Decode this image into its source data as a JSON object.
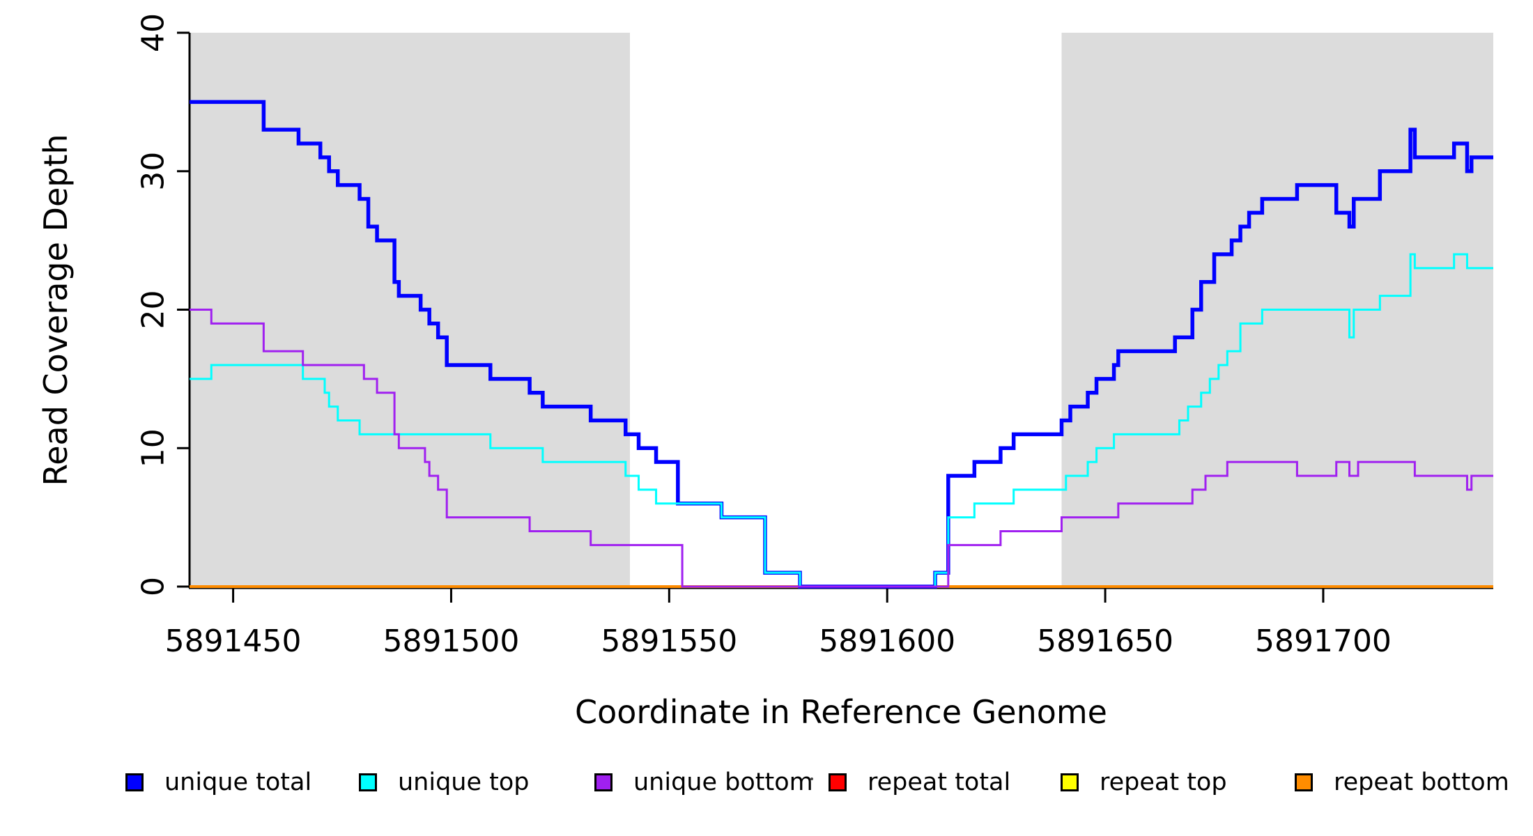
{
  "chart_data": {
    "type": "line",
    "line_style": "step",
    "title": "",
    "xlabel": "Coordinate in Reference Genome",
    "ylabel": "Read Coverage Depth",
    "xlim": [
      5891440,
      5891739
    ],
    "ylim": [
      0,
      40
    ],
    "grid": false,
    "legend_position": "bottom",
    "plot_background": "#FFFFFF",
    "shade_color": "#DCDCDC",
    "shaded_regions": [
      [
        5891440,
        5891541
      ],
      [
        5891640,
        5891739
      ]
    ],
    "x_axis": {
      "ticks": [
        {
          "value": 5891450,
          "label": "5891450"
        },
        {
          "value": 5891500,
          "label": "5891500"
        },
        {
          "value": 5891550,
          "label": "5891550"
        },
        {
          "value": 5891600,
          "label": "5891600"
        },
        {
          "value": 5891650,
          "label": "5891650"
        },
        {
          "value": 5891700,
          "label": "5891700"
        }
      ]
    },
    "y_axis": {
      "ticks": [
        {
          "value": 0,
          "label": "0"
        },
        {
          "value": 10,
          "label": "10"
        },
        {
          "value": 20,
          "label": "20"
        },
        {
          "value": 30,
          "label": "30"
        },
        {
          "value": 40,
          "label": "40"
        }
      ]
    },
    "series": [
      {
        "name": "unique total",
        "color": "#0000FF",
        "points": [
          [
            5891440,
            35
          ],
          [
            5891457,
            33
          ],
          [
            5891465,
            32
          ],
          [
            5891470,
            31
          ],
          [
            5891472,
            30
          ],
          [
            5891474,
            29
          ],
          [
            5891479,
            28
          ],
          [
            5891481,
            26
          ],
          [
            5891483,
            25
          ],
          [
            5891487,
            22
          ],
          [
            5891488,
            21
          ],
          [
            5891493,
            20
          ],
          [
            5891495,
            19
          ],
          [
            5891497,
            18
          ],
          [
            5891499,
            16
          ],
          [
            5891509,
            15
          ],
          [
            5891518,
            14
          ],
          [
            5891521,
            13
          ],
          [
            5891532,
            12
          ],
          [
            5891540,
            11
          ],
          [
            5891543,
            10
          ],
          [
            5891547,
            9
          ],
          [
            5891552,
            6
          ],
          [
            5891562,
            5
          ],
          [
            5891572,
            1
          ],
          [
            5891580,
            0
          ],
          [
            5891611,
            1
          ],
          [
            5891614,
            8
          ],
          [
            5891620,
            9
          ],
          [
            5891626,
            10
          ],
          [
            5891629,
            11
          ],
          [
            5891640,
            12
          ],
          [
            5891642,
            13
          ],
          [
            5891646,
            14
          ],
          [
            5891648,
            15
          ],
          [
            5891652,
            16
          ],
          [
            5891653,
            17
          ],
          [
            5891666,
            18
          ],
          [
            5891670,
            20
          ],
          [
            5891672,
            22
          ],
          [
            5891675,
            24
          ],
          [
            5891679,
            25
          ],
          [
            5891681,
            26
          ],
          [
            5891683,
            27
          ],
          [
            5891686,
            28
          ],
          [
            5891694,
            29
          ],
          [
            5891703,
            27
          ],
          [
            5891706,
            26
          ],
          [
            5891707,
            28
          ],
          [
            5891713,
            30
          ],
          [
            5891720,
            33
          ],
          [
            5891721,
            31
          ],
          [
            5891730,
            32
          ],
          [
            5891733,
            30
          ],
          [
            5891734,
            31
          ]
        ]
      },
      {
        "name": "unique top",
        "color": "#00FFFF",
        "points": [
          [
            5891440,
            15
          ],
          [
            5891445,
            16
          ],
          [
            5891466,
            15
          ],
          [
            5891471,
            14
          ],
          [
            5891472,
            13
          ],
          [
            5891474,
            12
          ],
          [
            5891479,
            11
          ],
          [
            5891509,
            10
          ],
          [
            5891521,
            9
          ],
          [
            5891540,
            8
          ],
          [
            5891543,
            7
          ],
          [
            5891547,
            6
          ],
          [
            5891562,
            5
          ],
          [
            5891572,
            1
          ],
          [
            5891580,
            0
          ],
          [
            5891611,
            1
          ],
          [
            5891614,
            5
          ],
          [
            5891620,
            6
          ],
          [
            5891629,
            7
          ],
          [
            5891641,
            8
          ],
          [
            5891646,
            9
          ],
          [
            5891648,
            10
          ],
          [
            5891652,
            11
          ],
          [
            5891667,
            12
          ],
          [
            5891669,
            13
          ],
          [
            5891672,
            14
          ],
          [
            5891674,
            15
          ],
          [
            5891676,
            16
          ],
          [
            5891678,
            17
          ],
          [
            5891681,
            19
          ],
          [
            5891686,
            20
          ],
          [
            5891706,
            18
          ],
          [
            5891707,
            20
          ],
          [
            5891713,
            21
          ],
          [
            5891720,
            24
          ],
          [
            5891721,
            23
          ],
          [
            5891730,
            24
          ],
          [
            5891733,
            23
          ]
        ]
      },
      {
        "name": "unique bottom",
        "color": "#A020F0",
        "points": [
          [
            5891440,
            20
          ],
          [
            5891445,
            19
          ],
          [
            5891457,
            17
          ],
          [
            5891466,
            16
          ],
          [
            5891480,
            15
          ],
          [
            5891483,
            14
          ],
          [
            5891487,
            11
          ],
          [
            5891488,
            10
          ],
          [
            5891494,
            9
          ],
          [
            5891495,
            8
          ],
          [
            5891497,
            7
          ],
          [
            5891499,
            5
          ],
          [
            5891518,
            4
          ],
          [
            5891532,
            3
          ],
          [
            5891553,
            0
          ],
          [
            5891614,
            3
          ],
          [
            5891626,
            4
          ],
          [
            5891640,
            5
          ],
          [
            5891653,
            6
          ],
          [
            5891670,
            7
          ],
          [
            5891673,
            8
          ],
          [
            5891678,
            9
          ],
          [
            5891694,
            8
          ],
          [
            5891703,
            9
          ],
          [
            5891706,
            8
          ],
          [
            5891708,
            9
          ],
          [
            5891721,
            8
          ],
          [
            5891733,
            7
          ],
          [
            5891734,
            8
          ]
        ]
      },
      {
        "name": "repeat total",
        "color": "#FF0000",
        "points": [
          [
            5891440,
            0
          ]
        ]
      },
      {
        "name": "repeat top",
        "color": "#FFFF00",
        "points": [
          [
            5891440,
            0
          ]
        ]
      },
      {
        "name": "repeat bottom",
        "color": "#FF8C00",
        "points": [
          [
            5891440,
            0
          ]
        ]
      }
    ]
  },
  "legend": {
    "items": [
      {
        "label": "unique total",
        "color": "#0000FF"
      },
      {
        "label": "unique top",
        "color": "#00FFFF"
      },
      {
        "label": "unique bottom",
        "color": "#A020F0"
      },
      {
        "label": "repeat total",
        "color": "#FF0000"
      },
      {
        "label": "repeat top",
        "color": "#FFFF00"
      },
      {
        "label": "repeat bottom",
        "color": "#FF8C00"
      }
    ]
  }
}
